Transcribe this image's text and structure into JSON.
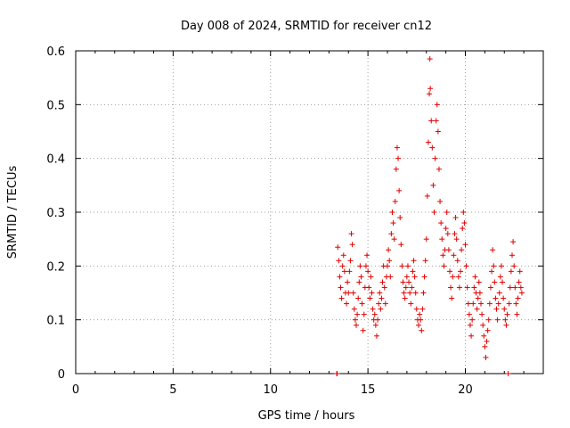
{
  "chart_data": {
    "type": "scatter",
    "title": "Day 008 of 2024, SRMTID for receiver cn12",
    "xlabel": "GPS time / hours",
    "ylabel": "SRMTID / TECUs",
    "xlim": [
      0,
      24
    ],
    "ylim": [
      0,
      0.6
    ],
    "xticks": [
      0,
      5,
      10,
      15,
      20
    ],
    "yticks": [
      0,
      0.1,
      0.2,
      0.3,
      0.4,
      0.5,
      0.6
    ],
    "xtick_labels": [
      "0",
      "5",
      "10",
      "15",
      "20"
    ],
    "ytick_labels": [
      "0",
      "0.1",
      "0.2",
      "0.3",
      "0.4",
      "0.5",
      "0.6"
    ],
    "grid": true,
    "marker": "+",
    "color": "#e00000",
    "series": [
      {
        "name": "SRMTID",
        "points": [
          [
            13.4,
            0.0
          ],
          [
            13.42,
            0.0
          ],
          [
            22.2,
            0.0
          ],
          [
            13.45,
            0.235
          ],
          [
            13.5,
            0.21
          ],
          [
            13.55,
            0.18
          ],
          [
            13.6,
            0.16
          ],
          [
            13.65,
            0.14
          ],
          [
            13.7,
            0.2
          ],
          [
            13.75,
            0.22
          ],
          [
            13.8,
            0.19
          ],
          [
            13.85,
            0.15
          ],
          [
            13.9,
            0.13
          ],
          [
            13.95,
            0.17
          ],
          [
            14.0,
            0.15
          ],
          [
            14.05,
            0.19
          ],
          [
            14.1,
            0.21
          ],
          [
            14.15,
            0.26
          ],
          [
            14.2,
            0.24
          ],
          [
            14.25,
            0.15
          ],
          [
            14.3,
            0.12
          ],
          [
            14.35,
            0.1
          ],
          [
            14.4,
            0.09
          ],
          [
            14.45,
            0.11
          ],
          [
            14.5,
            0.14
          ],
          [
            14.55,
            0.17
          ],
          [
            14.6,
            0.2
          ],
          [
            14.65,
            0.18
          ],
          [
            14.7,
            0.13
          ],
          [
            14.75,
            0.08
          ],
          [
            14.8,
            0.11
          ],
          [
            14.85,
            0.16
          ],
          [
            14.9,
            0.2
          ],
          [
            14.95,
            0.22
          ],
          [
            15.0,
            0.19
          ],
          [
            15.05,
            0.16
          ],
          [
            15.1,
            0.14
          ],
          [
            15.15,
            0.18
          ],
          [
            15.2,
            0.15
          ],
          [
            15.25,
            0.12
          ],
          [
            15.3,
            0.1
          ],
          [
            15.35,
            0.11
          ],
          [
            15.4,
            0.09
          ],
          [
            15.45,
            0.07
          ],
          [
            15.5,
            0.1
          ],
          [
            15.55,
            0.13
          ],
          [
            15.6,
            0.15
          ],
          [
            15.65,
            0.12
          ],
          [
            15.7,
            0.14
          ],
          [
            15.75,
            0.17
          ],
          [
            15.8,
            0.2
          ],
          [
            15.85,
            0.16
          ],
          [
            15.9,
            0.13
          ],
          [
            15.95,
            0.18
          ],
          [
            16.0,
            0.2
          ],
          [
            16.05,
            0.23
          ],
          [
            16.1,
            0.21
          ],
          [
            16.15,
            0.18
          ],
          [
            16.2,
            0.26
          ],
          [
            16.25,
            0.3
          ],
          [
            16.3,
            0.28
          ],
          [
            16.35,
            0.25
          ],
          [
            16.4,
            0.32
          ],
          [
            16.45,
            0.38
          ],
          [
            16.5,
            0.42
          ],
          [
            16.55,
            0.4
          ],
          [
            16.6,
            0.34
          ],
          [
            16.65,
            0.29
          ],
          [
            16.7,
            0.24
          ],
          [
            16.75,
            0.2
          ],
          [
            16.8,
            0.17
          ],
          [
            16.85,
            0.15
          ],
          [
            16.9,
            0.14
          ],
          [
            16.95,
            0.16
          ],
          [
            17.0,
            0.18
          ],
          [
            17.05,
            0.2
          ],
          [
            17.1,
            0.17
          ],
          [
            17.15,
            0.15
          ],
          [
            17.2,
            0.13
          ],
          [
            17.25,
            0.16
          ],
          [
            17.3,
            0.19
          ],
          [
            17.35,
            0.21
          ],
          [
            17.4,
            0.18
          ],
          [
            17.45,
            0.15
          ],
          [
            17.5,
            0.12
          ],
          [
            17.55,
            0.1
          ],
          [
            17.6,
            0.09
          ],
          [
            17.65,
            0.11
          ],
          [
            17.7,
            0.1
          ],
          [
            17.75,
            0.08
          ],
          [
            17.8,
            0.12
          ],
          [
            17.85,
            0.15
          ],
          [
            17.9,
            0.18
          ],
          [
            17.95,
            0.21
          ],
          [
            18.0,
            0.25
          ],
          [
            18.05,
            0.33
          ],
          [
            18.1,
            0.43
          ],
          [
            18.15,
            0.52
          ],
          [
            18.18,
            0.585
          ],
          [
            18.2,
            0.53
          ],
          [
            18.25,
            0.47
          ],
          [
            18.3,
            0.42
          ],
          [
            18.35,
            0.35
          ],
          [
            18.4,
            0.3
          ],
          [
            18.45,
            0.4
          ],
          [
            18.5,
            0.47
          ],
          [
            18.55,
            0.5
          ],
          [
            18.6,
            0.45
          ],
          [
            18.65,
            0.38
          ],
          [
            18.7,
            0.32
          ],
          [
            18.75,
            0.28
          ],
          [
            18.8,
            0.25
          ],
          [
            18.85,
            0.22
          ],
          [
            18.9,
            0.2
          ],
          [
            18.95,
            0.23
          ],
          [
            19.0,
            0.27
          ],
          [
            19.05,
            0.3
          ],
          [
            19.1,
            0.26
          ],
          [
            19.15,
            0.23
          ],
          [
            19.2,
            0.19
          ],
          [
            19.25,
            0.16
          ],
          [
            19.3,
            0.14
          ],
          [
            19.35,
            0.18
          ],
          [
            19.4,
            0.22
          ],
          [
            19.45,
            0.26
          ],
          [
            19.5,
            0.29
          ],
          [
            19.55,
            0.25
          ],
          [
            19.6,
            0.21
          ],
          [
            19.65,
            0.18
          ],
          [
            19.7,
            0.16
          ],
          [
            19.75,
            0.19
          ],
          [
            19.8,
            0.23
          ],
          [
            19.85,
            0.27
          ],
          [
            19.9,
            0.3
          ],
          [
            19.95,
            0.28
          ],
          [
            20.0,
            0.24
          ],
          [
            20.05,
            0.2
          ],
          [
            20.1,
            0.16
          ],
          [
            20.15,
            0.13
          ],
          [
            20.2,
            0.11
          ],
          [
            20.25,
            0.09
          ],
          [
            20.3,
            0.07
          ],
          [
            20.35,
            0.1
          ],
          [
            20.4,
            0.13
          ],
          [
            20.45,
            0.16
          ],
          [
            20.5,
            0.18
          ],
          [
            20.55,
            0.15
          ],
          [
            20.6,
            0.12
          ],
          [
            20.65,
            0.14
          ],
          [
            20.7,
            0.17
          ],
          [
            20.75,
            0.15
          ],
          [
            20.8,
            0.13
          ],
          [
            20.85,
            0.11
          ],
          [
            20.9,
            0.09
          ],
          [
            20.95,
            0.07
          ],
          [
            21.0,
            0.05
          ],
          [
            21.05,
            0.03
          ],
          [
            21.1,
            0.06
          ],
          [
            21.15,
            0.08
          ],
          [
            21.2,
            0.1
          ],
          [
            21.25,
            0.13
          ],
          [
            21.3,
            0.16
          ],
          [
            21.35,
            0.19
          ],
          [
            21.4,
            0.23
          ],
          [
            21.45,
            0.2
          ],
          [
            21.5,
            0.17
          ],
          [
            21.55,
            0.14
          ],
          [
            21.6,
            0.12
          ],
          [
            21.65,
            0.1
          ],
          [
            21.7,
            0.13
          ],
          [
            21.75,
            0.15
          ],
          [
            21.8,
            0.18
          ],
          [
            21.85,
            0.2
          ],
          [
            21.9,
            0.17
          ],
          [
            21.95,
            0.14
          ],
          [
            22.0,
            0.12
          ],
          [
            22.05,
            0.1
          ],
          [
            22.1,
            0.09
          ],
          [
            22.15,
            0.11
          ],
          [
            22.25,
            0.13
          ],
          [
            22.3,
            0.16
          ],
          [
            22.35,
            0.19
          ],
          [
            22.4,
            0.22
          ],
          [
            22.45,
            0.245
          ],
          [
            22.5,
            0.2
          ],
          [
            22.55,
            0.16
          ],
          [
            22.6,
            0.13
          ],
          [
            22.65,
            0.11
          ],
          [
            22.7,
            0.14
          ],
          [
            22.75,
            0.17
          ],
          [
            22.8,
            0.19
          ],
          [
            22.85,
            0.16
          ],
          [
            22.9,
            0.15
          ]
        ]
      }
    ]
  }
}
